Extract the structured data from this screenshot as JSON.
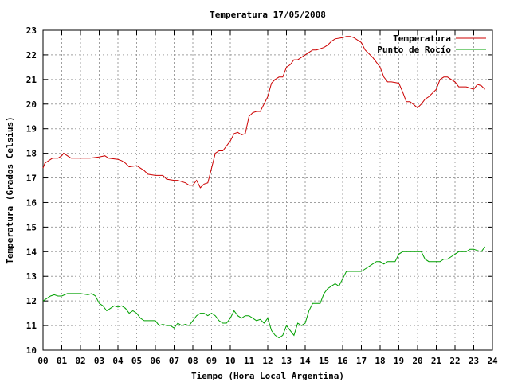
{
  "chart_data": {
    "type": "line",
    "title": "Temperatura 17/05/2008",
    "xlabel": "Tiempo (Hora Local Argentina)",
    "ylabel": "Temperatura (Grados Celsius)",
    "xlim": [
      0,
      24
    ],
    "ylim": [
      10,
      23
    ],
    "x_ticks": [
      0,
      1,
      2,
      3,
      4,
      5,
      6,
      7,
      8,
      9,
      10,
      11,
      12,
      13,
      14,
      15,
      16,
      17,
      18,
      19,
      20,
      21,
      22,
      23,
      24
    ],
    "x_tick_labels": [
      "00",
      "01",
      "02",
      "03",
      "04",
      "05",
      "06",
      "07",
      "08",
      "09",
      "10",
      "11",
      "12",
      "13",
      "14",
      "15",
      "16",
      "17",
      "18",
      "19",
      "20",
      "21",
      "22",
      "23",
      "24"
    ],
    "y_ticks": [
      10,
      11,
      12,
      13,
      14,
      15,
      16,
      17,
      18,
      19,
      20,
      21,
      22,
      23
    ],
    "y_tick_labels": [
      "10",
      "11",
      "12",
      "13",
      "14",
      "15",
      "16",
      "17",
      "18",
      "19",
      "20",
      "21",
      "22",
      "23"
    ],
    "grid": true,
    "legend_position": "top-right",
    "series": [
      {
        "name": "Temperatura",
        "color": "#cc0000",
        "x": [
          0,
          0.1,
          0.3,
          0.5,
          0.8,
          1.0,
          1.1,
          1.3,
          1.5,
          2.0,
          2.5,
          3.0,
          3.3,
          3.5,
          4.0,
          4.2,
          4.4,
          4.6,
          5.0,
          5.2,
          5.4,
          5.6,
          6.0,
          6.4,
          6.6,
          7.0,
          7.2,
          7.4,
          7.6,
          7.8,
          8.0,
          8.2,
          8.4,
          8.6,
          8.8,
          9.0,
          9.2,
          9.4,
          9.6,
          10.0,
          10.2,
          10.4,
          10.6,
          10.8,
          11.0,
          11.2,
          11.4,
          11.6,
          12.0,
          12.2,
          12.4,
          12.6,
          12.8,
          13.0,
          13.2,
          13.4,
          13.6,
          14.0,
          14.2,
          14.4,
          14.6,
          15.0,
          15.2,
          15.4,
          15.6,
          16.0,
          16.2,
          16.4,
          16.6,
          17.0,
          17.2,
          17.4,
          17.6,
          18.0,
          18.2,
          18.4,
          18.6,
          19.0,
          19.2,
          19.4,
          19.6,
          20.0,
          20.2,
          20.4,
          20.6,
          21.0,
          21.2,
          21.4,
          21.6,
          22.0,
          22.2,
          22.4,
          22.6,
          23.0,
          23.2,
          23.4,
          23.6
        ],
        "values": [
          17.4,
          17.6,
          17.7,
          17.8,
          17.8,
          17.9,
          18.0,
          17.9,
          17.8,
          17.8,
          17.8,
          17.85,
          17.9,
          17.8,
          17.75,
          17.7,
          17.6,
          17.45,
          17.5,
          17.4,
          17.3,
          17.15,
          17.1,
          17.1,
          16.95,
          16.9,
          16.9,
          16.85,
          16.8,
          16.7,
          16.7,
          16.9,
          16.6,
          16.75,
          16.8,
          17.4,
          18.0,
          18.1,
          18.1,
          18.5,
          18.8,
          18.85,
          18.75,
          18.8,
          19.5,
          19.65,
          19.7,
          19.7,
          20.3,
          20.85,
          21.0,
          21.1,
          21.1,
          21.5,
          21.6,
          21.8,
          21.8,
          22.0,
          22.1,
          22.2,
          22.2,
          22.3,
          22.4,
          22.55,
          22.65,
          22.7,
          22.75,
          22.75,
          22.7,
          22.5,
          22.2,
          22.05,
          21.9,
          21.5,
          21.1,
          20.9,
          20.9,
          20.85,
          20.5,
          20.1,
          20.1,
          19.85,
          20.0,
          20.2,
          20.3,
          20.6,
          21.0,
          21.1,
          21.1,
          20.9,
          20.7,
          20.7,
          20.7,
          20.6,
          20.8,
          20.75,
          20.6
        ]
      },
      {
        "name": "Punto de Rocío",
        "color": "#00a000",
        "x": [
          0,
          0.2,
          0.4,
          0.6,
          0.8,
          1.0,
          1.3,
          1.6,
          2.0,
          2.4,
          2.6,
          2.8,
          3.0,
          3.2,
          3.4,
          3.6,
          3.8,
          4.0,
          4.2,
          4.4,
          4.6,
          4.8,
          5.0,
          5.2,
          5.4,
          5.6,
          6.0,
          6.2,
          6.4,
          6.6,
          6.8,
          7.0,
          7.2,
          7.4,
          7.6,
          7.8,
          8.0,
          8.2,
          8.4,
          8.6,
          8.8,
          9.0,
          9.2,
          9.4,
          9.6,
          9.8,
          10.0,
          10.2,
          10.4,
          10.6,
          10.8,
          11.0,
          11.2,
          11.4,
          11.6,
          11.8,
          12.0,
          12.2,
          12.4,
          12.6,
          12.8,
          13.0,
          13.2,
          13.4,
          13.6,
          13.8,
          14.0,
          14.2,
          14.4,
          14.6,
          14.8,
          15.0,
          15.2,
          15.4,
          15.6,
          15.8,
          16.0,
          16.2,
          16.4,
          16.6,
          16.8,
          17.0,
          17.2,
          17.4,
          17.6,
          17.8,
          18.0,
          18.2,
          18.4,
          18.6,
          18.8,
          19.0,
          19.2,
          19.4,
          19.6,
          19.8,
          20.0,
          20.2,
          20.4,
          20.6,
          20.8,
          21.0,
          21.2,
          21.4,
          21.6,
          21.8,
          22.0,
          22.2,
          22.4,
          22.6,
          22.8,
          23.0,
          23.2,
          23.4,
          23.6
        ],
        "values": [
          12.0,
          12.1,
          12.2,
          12.25,
          12.2,
          12.2,
          12.3,
          12.3,
          12.3,
          12.25,
          12.3,
          12.2,
          11.9,
          11.8,
          11.6,
          11.7,
          11.8,
          11.75,
          11.8,
          11.7,
          11.5,
          11.6,
          11.5,
          11.3,
          11.2,
          11.2,
          11.2,
          11.0,
          11.05,
          11.0,
          11.0,
          10.9,
          11.1,
          11.0,
          11.05,
          11.0,
          11.2,
          11.4,
          11.5,
          11.5,
          11.4,
          11.5,
          11.4,
          11.2,
          11.1,
          11.1,
          11.3,
          11.6,
          11.4,
          11.3,
          11.4,
          11.4,
          11.3,
          11.2,
          11.25,
          11.1,
          11.3,
          10.8,
          10.6,
          10.5,
          10.6,
          11.0,
          10.8,
          10.6,
          11.1,
          11.0,
          11.1,
          11.6,
          11.9,
          11.9,
          11.9,
          12.3,
          12.5,
          12.6,
          12.7,
          12.6,
          12.9,
          13.2,
          13.2,
          13.2,
          13.2,
          13.2,
          13.3,
          13.4,
          13.5,
          13.6,
          13.6,
          13.5,
          13.6,
          13.6,
          13.6,
          13.9,
          14.0,
          14.0,
          14.0,
          14.0,
          14.0,
          14.0,
          13.7,
          13.6,
          13.6,
          13.6,
          13.6,
          13.7,
          13.7,
          13.8,
          13.9,
          14.0,
          14.0,
          14.0,
          14.1,
          14.1,
          14.05,
          14.0,
          14.2
        ]
      }
    ]
  }
}
